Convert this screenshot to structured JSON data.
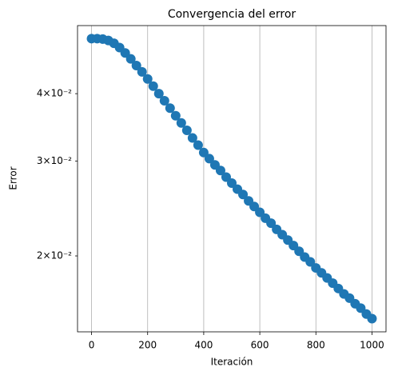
{
  "chart_data": {
    "type": "scatter",
    "title": "Convergencia del error",
    "x_label": "Iteración",
    "y_label": "Error",
    "x": [
      0,
      20,
      40,
      60,
      80,
      100,
      120,
      140,
      160,
      180,
      200,
      220,
      240,
      260,
      280,
      300,
      320,
      340,
      360,
      380,
      400,
      420,
      440,
      460,
      480,
      500,
      520,
      540,
      560,
      580,
      600,
      620,
      640,
      660,
      680,
      700,
      720,
      740,
      760,
      780,
      800,
      820,
      840,
      860,
      880,
      900,
      920,
      940,
      960,
      980,
      1000
    ],
    "series": [
      {
        "color": "#1f77b4",
        "values": [
          0.0506,
          0.0506,
          0.0505,
          0.0502,
          0.0496,
          0.0487,
          0.0476,
          0.0464,
          0.0451,
          0.0439,
          0.0426,
          0.0413,
          0.04,
          0.0388,
          0.0376,
          0.0364,
          0.0353,
          0.0342,
          0.0331,
          0.0321,
          0.0311,
          0.0303,
          0.0295,
          0.0288,
          0.028,
          0.0273,
          0.0266,
          0.026,
          0.0253,
          0.0247,
          0.0241,
          0.0235,
          0.023,
          0.0224,
          0.0219,
          0.0214,
          0.0209,
          0.0204,
          0.0199,
          0.0195,
          0.019,
          0.0186,
          0.0182,
          0.0178,
          0.0174,
          0.017,
          0.0167,
          0.0163,
          0.016,
          0.0156,
          0.0153
        ]
      }
    ],
    "xlim": [
      -50,
      1050
    ],
    "xticks": [
      0,
      200,
      400,
      600,
      800,
      1000
    ],
    "ylim": [
      0.01446,
      0.0535
    ],
    "log_y": true,
    "yticks": [
      {
        "value": 0.02,
        "label": "2×10⁻²"
      },
      {
        "value": 0.03,
        "label": "3×10⁻²"
      },
      {
        "value": 0.04,
        "label": "4×10⁻²"
      }
    ],
    "grid_x": true
  }
}
